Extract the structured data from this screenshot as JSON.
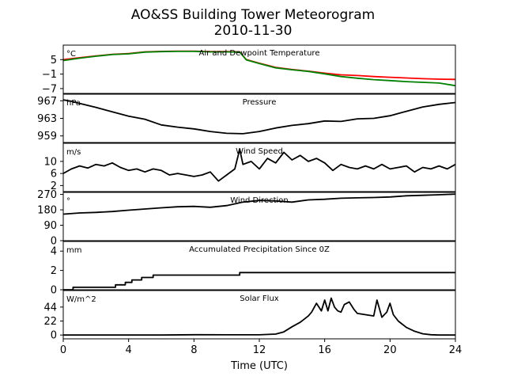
{
  "figure": {
    "title_line1": "AO&SS Building Tower Meteorogram",
    "title_line2": "2010-11-30",
    "xlabel": "Time (UTC)"
  },
  "chart_data": {
    "type": "line",
    "xlim": [
      0,
      24
    ],
    "xticks": [
      "0",
      "4",
      "8",
      "12",
      "16",
      "20",
      "24"
    ],
    "panels": [
      {
        "id": "temp",
        "title": "Air and Dewpoint Temperature",
        "unit": "°C",
        "ylim": [
          -9,
          11
        ],
        "yticks": [
          {
            "v": 5,
            "label": "5"
          },
          {
            "v": -1,
            "label": "−1"
          },
          {
            "v": -7,
            "label": "−7"
          }
        ],
        "series": [
          {
            "color": "#ff0000",
            "x": [
              0,
              1,
              2,
              3,
              4,
              5,
              6,
              7,
              8,
              9,
              10,
              10.8,
              11.2,
              12,
              13,
              14,
              15,
              16,
              17,
              18,
              19,
              20,
              21,
              22,
              23,
              24
            ],
            "y": [
              5.0,
              5.8,
              6.5,
              7.2,
              7.5,
              8.2,
              8.4,
              8.5,
              8.5,
              8.3,
              8.3,
              8.2,
              5.0,
              3.5,
              1.8,
              0.9,
              0.2,
              -0.6,
              -1.3,
              -1.6,
              -2.0,
              -2.3,
              -2.6,
              -2.9,
              -3.1,
              -3.2
            ]
          },
          {
            "color": "#008000",
            "x": [
              0,
              1,
              2,
              3,
              4,
              5,
              6,
              7,
              8,
              9,
              10,
              10.8,
              11.2,
              12,
              13,
              14,
              15,
              16,
              17,
              18,
              19,
              20,
              21,
              22,
              23,
              24
            ],
            "y": [
              4.6,
              5.6,
              6.4,
              7.1,
              7.4,
              8.1,
              8.3,
              8.4,
              8.4,
              8.2,
              8.2,
              8.1,
              4.9,
              3.4,
              1.6,
              0.8,
              0.1,
              -0.9,
              -2.0,
              -2.7,
              -3.3,
              -3.7,
              -4.1,
              -4.4,
              -4.7,
              -5.8
            ]
          }
        ]
      },
      {
        "id": "pres",
        "title": "Pressure",
        "unit": "hPa",
        "ylim": [
          957.5,
          968.5
        ],
        "yticks": [
          {
            "v": 967,
            "label": "967"
          },
          {
            "v": 963,
            "label": "963"
          },
          {
            "v": 959,
            "label": "959"
          }
        ],
        "series": [
          {
            "color": "#000000",
            "x": [
              0,
              0.5,
              1,
              2,
              3,
              4,
              5,
              6,
              7,
              8,
              9,
              10,
              11,
              12,
              13,
              14,
              15,
              16,
              17,
              18,
              19,
              20,
              21,
              22,
              23,
              24
            ],
            "y": [
              967.2,
              966.9,
              966.4,
              965.5,
              964.5,
              963.5,
              962.8,
              961.5,
              961.0,
              960.6,
              960.0,
              959.6,
              959.5,
              960.0,
              960.8,
              961.4,
              961.8,
              962.4,
              962.3,
              962.9,
              963.0,
              963.6,
              964.6,
              965.6,
              966.2,
              966.6
            ]
          }
        ]
      },
      {
        "id": "wspd",
        "title": "Wind Speed",
        "unit": "m/s",
        "ylim": [
          0,
          16
        ],
        "yticks": [
          {
            "v": 10,
            "label": "10"
          },
          {
            "v": 6,
            "label": "6"
          },
          {
            "v": 2,
            "label": "2"
          }
        ],
        "series": [
          {
            "color": "#000000",
            "x": [
              0,
              0.5,
              1,
              1.5,
              2,
              2.5,
              3,
              3.5,
              4,
              4.5,
              5,
              5.5,
              6,
              6.5,
              7,
              7.5,
              8,
              8.5,
              9,
              9.5,
              10,
              10.5,
              10.8,
              11,
              11.5,
              12,
              12.5,
              13,
              13.5,
              14,
              14.5,
              15,
              15.5,
              16,
              16.5,
              17,
              17.5,
              18,
              18.5,
              19,
              19.5,
              20,
              20.5,
              21,
              21.5,
              22,
              22.5,
              23,
              23.5,
              24
            ],
            "y": [
              6.0,
              7.5,
              8.5,
              7.8,
              9.0,
              8.5,
              9.5,
              8.0,
              7.0,
              7.5,
              6.5,
              7.5,
              7.0,
              5.5,
              6.0,
              5.5,
              5.0,
              5.5,
              6.5,
              3.5,
              5.5,
              7.5,
              14.0,
              9.0,
              10.0,
              7.5,
              11.0,
              9.5,
              13.0,
              10.5,
              12.0,
              10.0,
              11.0,
              9.5,
              7.0,
              9.0,
              8.0,
              7.5,
              8.5,
              7.5,
              9.0,
              7.5,
              8.0,
              8.5,
              6.5,
              8.0,
              7.5,
              8.5,
              7.5,
              9.0
            ]
          }
        ]
      },
      {
        "id": "wdir",
        "title": "Wind Direction",
        "unit": "°",
        "ylim": [
          0,
          282
        ],
        "yticks": [
          {
            "v": 270,
            "label": "270"
          },
          {
            "v": 180,
            "label": "180"
          },
          {
            "v": 90,
            "label": "90"
          },
          {
            "v": 0,
            "label": "0"
          }
        ],
        "series": [
          {
            "color": "#000000",
            "x": [
              0,
              1,
              2,
              3,
              4,
              5,
              6,
              7,
              8,
              9,
              10,
              11,
              12,
              13,
              14,
              15,
              16,
              17,
              18,
              19,
              20,
              21,
              22,
              23,
              24
            ],
            "y": [
              155,
              162,
              165,
              170,
              178,
              185,
              192,
              198,
              200,
              195,
              205,
              225,
              235,
              232,
              225,
              238,
              242,
              248,
              250,
              252,
              255,
              262,
              265,
              268,
              272
            ]
          }
        ]
      },
      {
        "id": "prec",
        "title": "Accumulated Precipitation Since 0Z",
        "unit": "mm",
        "ylim": [
          0,
          5
        ],
        "yticks": [
          {
            "v": 4,
            "label": "4"
          },
          {
            "v": 2,
            "label": "2"
          },
          {
            "v": 0,
            "label": "0"
          }
        ],
        "series": [
          {
            "color": "#000000",
            "step": true,
            "x": [
              0,
              0.6,
              3.2,
              3.8,
              4.2,
              4.8,
              5.5,
              10.8,
              24
            ],
            "y": [
              0.0,
              0.25,
              0.51,
              0.76,
              1.02,
              1.27,
              1.52,
              1.78,
              1.78
            ]
          }
        ]
      },
      {
        "id": "solar",
        "title": "Solar Flux",
        "unit": "W/m^2",
        "ylim": [
          -6,
          70
        ],
        "yticks": [
          {
            "v": 44,
            "label": "44"
          },
          {
            "v": 22,
            "label": "22"
          },
          {
            "v": 0,
            "label": "0"
          }
        ],
        "series": [
          {
            "color": "#000000",
            "x": [
              0,
              2,
              4,
              6,
              8,
              10,
              12,
              13,
              13.5,
              14,
              14.5,
              15,
              15.2,
              15.5,
              15.8,
              16,
              16.2,
              16.4,
              16.6,
              16.8,
              17,
              17.2,
              17.5,
              17.8,
              18,
              18.5,
              19,
              19.2,
              19.5,
              19.8,
              20,
              20.2,
              20.5,
              21,
              21.5,
              22,
              22.5,
              23,
              24
            ],
            "y": [
              0,
              0,
              0,
              0,
              0.5,
              0.3,
              0.3,
              1.5,
              5,
              13,
              20,
              30,
              36,
              50,
              38,
              55,
              38,
              58,
              44,
              38,
              36,
              48,
              52,
              40,
              34,
              32,
              30,
              55,
              28,
              36,
              50,
              32,
              22,
              12,
              6,
              2,
              0.5,
              0,
              0
            ]
          }
        ]
      }
    ]
  }
}
